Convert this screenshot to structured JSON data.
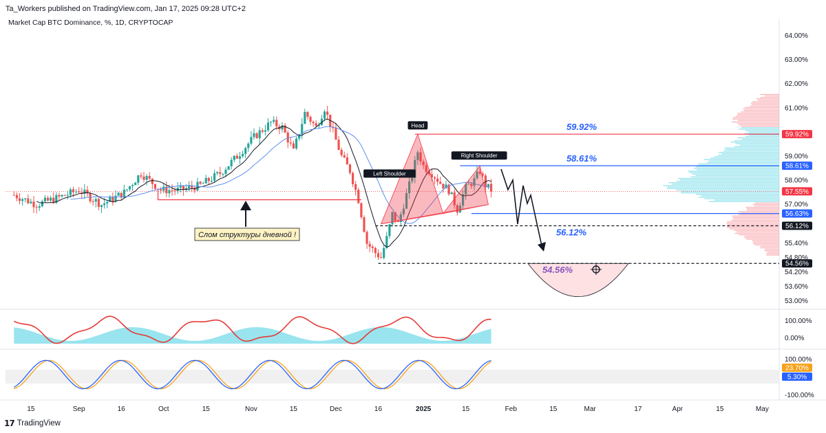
{
  "header": {
    "publisher": "Ta_Workers published on TradingView.com, Jan 17, 2025 09:28 UTC+2",
    "symbol": "Market Cap BTC Dominance, %, 1D, CRYPTOCAP"
  },
  "footer": {
    "brand": "TradingView",
    "logo_icon": "tradingview-logo-icon"
  },
  "chart_data": {
    "type": "candlestick",
    "y_axis": {
      "ylim": [
        52.8,
        64.4
      ],
      "ticks": [
        "64.00%",
        "63.00%",
        "62.00%",
        "61.00%",
        "59.00%",
        "58.00%",
        "57.00%",
        "55.40%",
        "54.80%",
        "54.20%",
        "53.60%",
        "53.00%"
      ],
      "tick_values": [
        64.0,
        63.0,
        62.0,
        61.0,
        59.0,
        58.0,
        57.0,
        55.4,
        54.8,
        54.2,
        53.6,
        53.0
      ]
    },
    "x_axis": {
      "ticks": [
        "15",
        "Sep",
        "16",
        "Oct",
        "15",
        "Nov",
        "15",
        "Dec",
        "16",
        "2025",
        "15",
        "Feb",
        "15",
        "Mar",
        "17",
        "Apr",
        "15",
        "May"
      ],
      "tick_days": [
        -157,
        -140,
        -125,
        -110,
        -95,
        -79,
        -64,
        -49,
        -34,
        -18,
        -3,
        13,
        28,
        41,
        58,
        72,
        87,
        102
      ]
    },
    "price_labels": [
      {
        "value": 59.92,
        "text": "59.92%",
        "bg": "#f23645",
        "fg": "#ffffff"
      },
      {
        "value": 58.61,
        "text": "58.61%",
        "bg": "#2962ff",
        "fg": "#ffffff"
      },
      {
        "value": 57.55,
        "text": "57.55%",
        "bg": "#f23645",
        "fg": "#ffffff"
      },
      {
        "value": 56.63,
        "text": "56.63%",
        "bg": "#2962ff",
        "fg": "#ffffff"
      },
      {
        "value": 56.12,
        "text": "56.12%",
        "bg": "#131722",
        "fg": "#ffffff"
      },
      {
        "value": 54.56,
        "text": "54.56%",
        "bg": "#131722",
        "fg": "#ffffff"
      }
    ],
    "levels": [
      {
        "value": 59.92,
        "color": "#f23645",
        "label": "59.92%",
        "label_color": "#2962ff",
        "style": "solid"
      },
      {
        "value": 58.61,
        "color": "#2962ff",
        "label": "58.61%",
        "label_color": "#2962ff",
        "style": "solid"
      },
      {
        "value": 56.63,
        "color": "#2962ff",
        "label": "",
        "style": "solid"
      },
      {
        "value": 56.12,
        "color": "#131722",
        "label": "56.12%",
        "label_color": "#2962ff",
        "style": "dashed"
      },
      {
        "value": 54.56,
        "color": "#131722",
        "label": "54.56%",
        "label_color": "#7a5cd6",
        "style": "dashed"
      }
    ],
    "pattern_labels": {
      "head": "Head",
      "left_shoulder": "Left Shoulder",
      "right_shoulder": "Right Shoulder"
    },
    "annotation": "Слом структуры дневной !",
    "candles_anchor": [
      [
        -163,
        57.4
      ],
      [
        -155,
        57.0
      ],
      [
        -147,
        57.3
      ],
      [
        -140,
        57.6
      ],
      [
        -132,
        57.0
      ],
      [
        -124,
        57.5
      ],
      [
        -118,
        58.3
      ],
      [
        -111,
        57.6
      ],
      [
        -104,
        57.6
      ],
      [
        -97,
        57.8
      ],
      [
        -90,
        58.3
      ],
      [
        -84,
        59.0
      ],
      [
        -78,
        59.8
      ],
      [
        -72,
        60.4
      ],
      [
        -68,
        60.2
      ],
      [
        -64,
        59.2
      ],
      [
        -60,
        60.8
      ],
      [
        -56,
        60.2
      ],
      [
        -53,
        61.0
      ],
      [
        -50,
        60.0
      ],
      [
        -47,
        59.0
      ],
      [
        -44,
        58.4
      ],
      [
        -41,
        57.2
      ],
      [
        -38,
        55.4
      ],
      [
        -35,
        55.0
      ],
      [
        -33,
        54.8
      ],
      [
        -31,
        55.6
      ],
      [
        -29,
        56.6
      ],
      [
        -27,
        56.2
      ],
      [
        -25,
        57.0
      ],
      [
        -22,
        58.2
      ],
      [
        -20,
        59.2
      ],
      [
        -18,
        58.6
      ],
      [
        -15,
        58.3
      ],
      [
        -12,
        57.9
      ],
      [
        -9,
        57.6
      ],
      [
        -6,
        56.8
      ],
      [
        -3,
        57.7
      ],
      [
        0,
        58.0
      ],
      [
        2,
        58.4
      ],
      [
        4,
        57.8
      ],
      [
        6,
        57.6
      ]
    ],
    "oscillator1": {
      "ticks": [
        "100.00%",
        "0.00%"
      ]
    },
    "oscillator2": {
      "ticks": [
        "100.00%",
        "-100.00%"
      ],
      "badges": [
        {
          "text": "23.70%",
          "bg": "#f7a21b"
        },
        {
          "text": "5.30%",
          "bg": "#2962ff"
        }
      ]
    }
  }
}
